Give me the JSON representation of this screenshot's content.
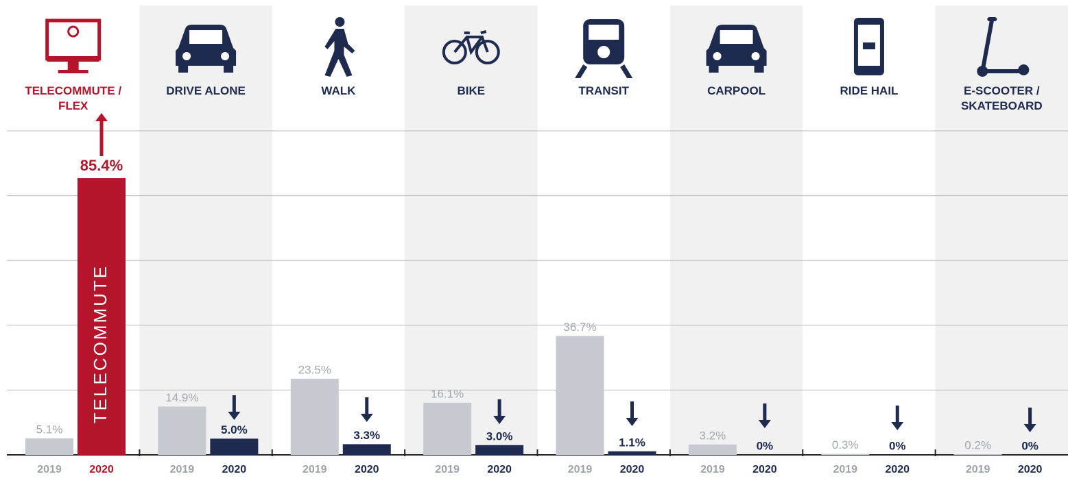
{
  "chart_data": {
    "type": "bar",
    "categories": [
      "TELECOMMUTE / FLEX",
      "DRIVE ALONE",
      "WALK",
      "BIKE",
      "TRANSIT",
      "CARPOOL",
      "RIDE HAIL",
      "E-SCOOTER / SKATEBOARD"
    ],
    "series": [
      {
        "name": "2019",
        "color": "#c6cad0",
        "values": [
          5.1,
          14.9,
          23.5,
          16.1,
          36.7,
          3.2,
          0.3,
          0.2
        ],
        "value_labels": [
          "5.1%",
          "14.9%",
          "23.5%",
          "16.1%",
          "36.7%",
          "3.2%",
          "0.3%",
          "0.2%"
        ]
      },
      {
        "name": "2020",
        "color": "#1f2a4f",
        "colors": [
          "#b5152b",
          "#1f2a4f",
          "#1f2a4f",
          "#1f2a4f",
          "#1f2a4f",
          "#1f2a4f",
          "#1f2a4f",
          "#1f2a4f"
        ],
        "values": [
          85.4,
          5.0,
          3.3,
          3.0,
          1.1,
          0,
          0,
          0
        ],
        "value_labels": [
          "85.4%",
          "5.0%",
          "3.3%",
          "3.0%",
          "1.1%",
          "0%",
          "0%",
          "0%"
        ]
      }
    ],
    "annotations": [
      "TELECOMMUTE"
    ],
    "ylim": [
      0,
      100
    ],
    "yticks": [
      0,
      20,
      40,
      60,
      80,
      100
    ],
    "grid": true
  }
}
